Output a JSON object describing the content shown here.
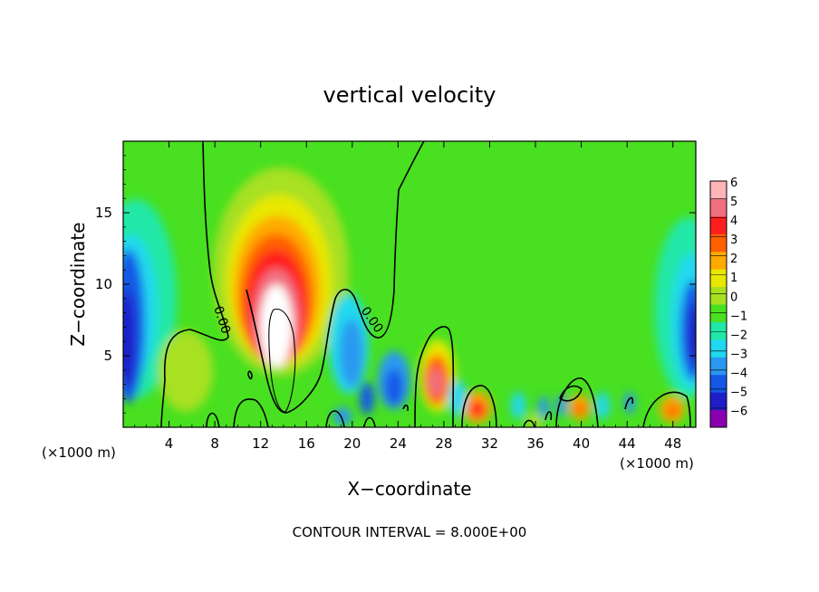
{
  "chart_data": {
    "type": "heatmap",
    "title": "vertical velocity",
    "xlabel": "X−coordinate",
    "ylabel": "Z−coordinate",
    "x_unit_left": "(×1000 m)",
    "x_unit_right": "(×1000 m)",
    "footer": "CONTOUR INTERVAL = 8.000E+00",
    "xlim": [
      0,
      50
    ],
    "ylim": [
      0,
      20
    ],
    "x_ticks": [
      4,
      8,
      12,
      16,
      20,
      24,
      28,
      32,
      36,
      40,
      44,
      48
    ],
    "y_ticks": [
      5,
      10,
      15
    ],
    "contour_label": "0.00",
    "colorbar": {
      "levels": [
        -6,
        -5,
        -4,
        -3,
        -2,
        -1,
        0,
        1,
        2,
        3,
        4,
        5,
        6
      ],
      "labels": [
        "6",
        "5",
        "4",
        "3",
        "2",
        "1",
        "0",
        "−1",
        "−2",
        "−3",
        "−4",
        "−5",
        "−6"
      ],
      "colors": [
        "#8a00b0",
        "#1e1ec8",
        "#1458e6",
        "#2a98f0",
        "#20d8f0",
        "#20e8a8",
        "#48e020",
        "#a8e020",
        "#e8e800",
        "#ffaa00",
        "#ff6000",
        "#ff1e1e",
        "#f07080",
        "#ffb4b8"
      ]
    },
    "features": [
      {
        "name": "updraft core",
        "x": 13.5,
        "z": 6,
        "w_max": 9
      },
      {
        "name": "left boundary downdraft",
        "x": 0.5,
        "z": 6,
        "w_min": -6
      },
      {
        "name": "right boundary downdraft",
        "x": 49.5,
        "z": 6,
        "w_min": -6
      },
      {
        "name": "downdraft near x=19",
        "x": 19,
        "z": 5,
        "w_min": -3
      },
      {
        "name": "updraft near x=27",
        "x": 27.5,
        "z": 3,
        "w_max": 5
      },
      {
        "name": "updraft near x=30.5",
        "x": 30.8,
        "z": 1.4,
        "w_max": 4
      },
      {
        "name": "updraft near x=39.7",
        "x": 39.7,
        "z": 1.4,
        "w_max": 3
      },
      {
        "name": "updraft near x=48",
        "x": 48,
        "z": 1.4,
        "w_max": 3
      }
    ]
  }
}
